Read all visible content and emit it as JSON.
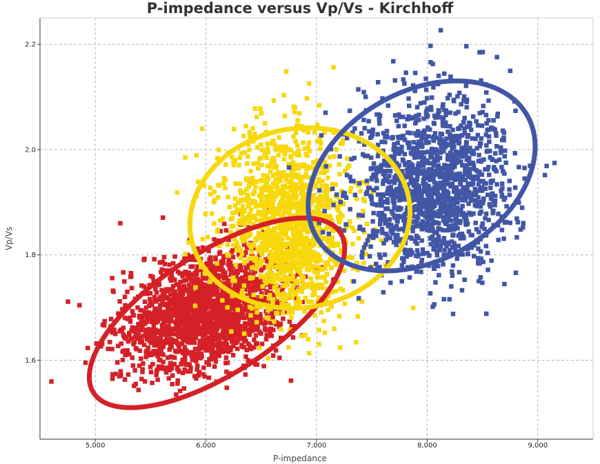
{
  "chart_data": {
    "type": "scatter",
    "title": "P-impedance versus Vp/Vs - Kirchhoff",
    "xlabel": "P-impedance",
    "ylabel": "Vp/Vs",
    "xlim": [
      4500,
      9500
    ],
    "ylim": [
      1.45,
      2.25
    ],
    "x_ticks": [
      5000,
      6000,
      7000,
      8000,
      9000
    ],
    "x_tick_labels": [
      "5,000",
      "6,000",
      "7,000",
      "8,000",
      "9,000"
    ],
    "y_ticks": [
      1.6,
      1.8,
      2.0,
      2.2
    ],
    "y_tick_labels": [
      "1.6",
      "1.8",
      "2.0",
      "2.2"
    ],
    "grid": true,
    "legend": "none",
    "series": [
      {
        "color": "#d42127",
        "marker": "square",
        "cluster_center": [
          6000,
          1.69
        ],
        "cluster_spread": [
          420,
          0.06
        ],
        "point_count": 1900,
        "ellipse": {
          "center": [
            6100,
            1.69
          ],
          "rx_units": 1330,
          "ry_units": 0.115,
          "rotation_deg": -33
        }
      },
      {
        "color": "#f7d80c",
        "marker": "square",
        "cluster_center": [
          6750,
          1.86
        ],
        "cluster_spread": [
          300,
          0.085
        ],
        "point_count": 1400,
        "ellipse": {
          "center": [
            6850,
            1.87
          ],
          "rx_units": 1000,
          "ry_units": 0.17,
          "rotation_deg": -10
        }
      },
      {
        "color": "#4256a6",
        "marker": "square",
        "cluster_center": [
          8050,
          1.93
        ],
        "cluster_spread": [
          380,
          0.09
        ],
        "point_count": 1500,
        "ellipse": {
          "center": [
            7950,
            1.95
          ],
          "rx_units": 1100,
          "ry_units": 0.16,
          "rotation_deg": -30
        }
      }
    ]
  }
}
